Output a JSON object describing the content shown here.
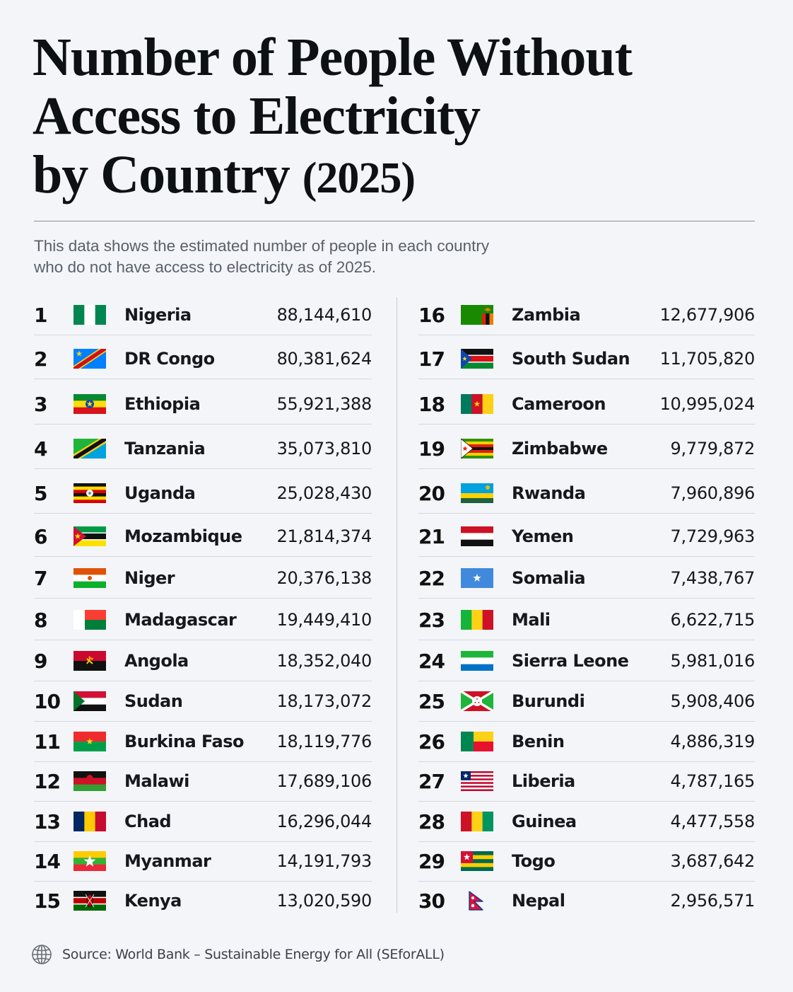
{
  "title": {
    "line1": "Number of People Without",
    "line2": "Access to Electricity",
    "line3": "by Country",
    "year": "(2025)"
  },
  "subtitle": {
    "line1": "This data shows the estimated number of people in each country",
    "line2": "who do not have access to electricity as of 2025."
  },
  "source": "Source: World Bank – Sustainable Energy for All (SEforALL)",
  "chart_data": {
    "type": "table",
    "title": "Number of People Without Access to Electricity by Country (2025)",
    "rows": [
      {
        "rank": "1",
        "country": "Nigeria",
        "value": "88,144,610",
        "flag": "nigeria-flag-icon"
      },
      {
        "rank": "2",
        "country": "DR Congo",
        "value": "80,381,624",
        "flag": "dr-congo-flag-icon"
      },
      {
        "rank": "3",
        "country": "Ethiopia",
        "value": "55,921,388",
        "flag": "ethiopia-flag-icon"
      },
      {
        "rank": "4",
        "country": "Tanzania",
        "value": "35,073,810",
        "flag": "tanzania-flag-icon"
      },
      {
        "rank": "5",
        "country": "Uganda",
        "value": "25,028,430",
        "flag": "uganda-flag-icon"
      },
      {
        "rank": "6",
        "country": "Mozambique",
        "value": "21,814,374",
        "flag": "mozambique-flag-icon"
      },
      {
        "rank": "7",
        "country": "Niger",
        "value": "20,376,138",
        "flag": "niger-flag-icon"
      },
      {
        "rank": "8",
        "country": "Madagascar",
        "value": "19,449,410",
        "flag": "madagascar-flag-icon"
      },
      {
        "rank": "9",
        "country": "Angola",
        "value": "18,352,040",
        "flag": "angola-flag-icon"
      },
      {
        "rank": "10",
        "country": "Sudan",
        "value": "18,173,072",
        "flag": "sudan-flag-icon"
      },
      {
        "rank": "11",
        "country": "Burkina Faso",
        "value": "18,119,776",
        "flag": "burkina-faso-flag-icon"
      },
      {
        "rank": "12",
        "country": "Malawi",
        "value": "17,689,106",
        "flag": "malawi-flag-icon"
      },
      {
        "rank": "13",
        "country": "Chad",
        "value": "16,296,044",
        "flag": "chad-flag-icon"
      },
      {
        "rank": "14",
        "country": "Myanmar",
        "value": "14,191,793",
        "flag": "myanmar-flag-icon"
      },
      {
        "rank": "15",
        "country": "Kenya",
        "value": "13,020,590",
        "flag": "kenya-flag-icon"
      },
      {
        "rank": "16",
        "country": "Zambia",
        "value": "12,677,906",
        "flag": "zambia-flag-icon"
      },
      {
        "rank": "17",
        "country": "South Sudan",
        "value": "11,705,820",
        "flag": "south-sudan-flag-icon"
      },
      {
        "rank": "18",
        "country": "Cameroon",
        "value": "10,995,024",
        "flag": "cameroon-flag-icon"
      },
      {
        "rank": "19",
        "country": "Zimbabwe",
        "value": "9,779,872",
        "flag": "zimbabwe-flag-icon"
      },
      {
        "rank": "20",
        "country": "Rwanda",
        "value": "7,960,896",
        "flag": "rwanda-flag-icon"
      },
      {
        "rank": "21",
        "country": "Yemen",
        "value": "7,729,963",
        "flag": "yemen-flag-icon"
      },
      {
        "rank": "22",
        "country": "Somalia",
        "value": "7,438,767",
        "flag": "somalia-flag-icon"
      },
      {
        "rank": "23",
        "country": "Mali",
        "value": "6,622,715",
        "flag": "mali-flag-icon"
      },
      {
        "rank": "24",
        "country": "Sierra Leone",
        "value": "5,981,016",
        "flag": "sierra-leone-flag-icon"
      },
      {
        "rank": "25",
        "country": "Burundi",
        "value": "5,908,406",
        "flag": "burundi-flag-icon"
      },
      {
        "rank": "26",
        "country": "Benin",
        "value": "4,886,319",
        "flag": "benin-flag-icon"
      },
      {
        "rank": "27",
        "country": "Liberia",
        "value": "4,787,165",
        "flag": "liberia-flag-icon"
      },
      {
        "rank": "28",
        "country": "Guinea",
        "value": "4,477,558",
        "flag": "guinea-flag-icon"
      },
      {
        "rank": "29",
        "country": "Togo",
        "value": "3,687,642",
        "flag": "togo-flag-icon"
      },
      {
        "rank": "30",
        "country": "Nepal",
        "value": "2,956,571",
        "flag": "nepal-flag-icon"
      }
    ]
  }
}
